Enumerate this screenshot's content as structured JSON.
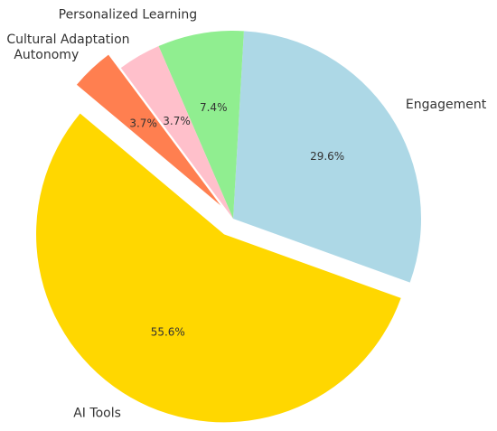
{
  "chart_data": {
    "type": "pie",
    "title": "",
    "categories": [
      "AI Tools",
      "Engagement",
      "Personalized Learning",
      "Cultural Adaptation",
      "Autonomy"
    ],
    "values": [
      55.6,
      29.6,
      7.4,
      3.7,
      3.7
    ],
    "percent_labels": [
      "55.6%",
      "29.6%",
      "7.4%",
      "3.7%",
      "3.7%"
    ],
    "colors": [
      "#FFD700",
      "#ADD8E6",
      "#90EE90",
      "#FFC0CB",
      "#FF7F50"
    ],
    "exploded": [
      "AI Tools",
      "Autonomy"
    ],
    "start_angle": 140,
    "direction": "counterclockwise",
    "legend": "none"
  }
}
